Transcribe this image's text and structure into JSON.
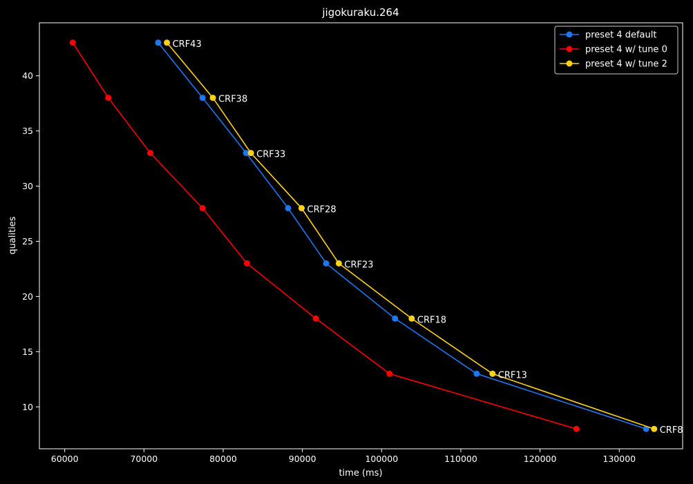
{
  "chart_data": {
    "type": "line",
    "title": "jigokuraku.264",
    "xlabel": "time (ms)",
    "ylabel": "qualities",
    "xlim": [
      56800,
      138000
    ],
    "ylim": [
      6.2,
      44.8
    ],
    "xticks": [
      60000,
      70000,
      80000,
      90000,
      100000,
      110000,
      120000,
      130000
    ],
    "yticks": [
      10,
      15,
      20,
      25,
      30,
      35,
      40
    ],
    "grid": false,
    "legend_position": "top-right",
    "series": [
      {
        "name": "preset 4 default",
        "color": "#1f77f0",
        "x": [
          71800,
          77400,
          82900,
          88200,
          93000,
          101700,
          112000,
          133400
        ],
        "y": [
          43,
          38,
          33,
          28,
          23,
          18,
          13,
          8
        ]
      },
      {
        "name": "preset 4 w/ tune 0",
        "color": "#ff0000",
        "x": [
          61000,
          65500,
          70800,
          77400,
          83000,
          91700,
          101000,
          124600
        ],
        "y": [
          43,
          38,
          33,
          28,
          23,
          18,
          13,
          8
        ]
      },
      {
        "name": "preset 4 w/ tune 2",
        "color": "#ffd21a",
        "x": [
          72900,
          78700,
          83500,
          89900,
          94600,
          103800,
          114000,
          134400
        ],
        "y": [
          43,
          38,
          33,
          28,
          23,
          18,
          13,
          8
        ]
      }
    ],
    "annotations": [
      {
        "text": "CRF43",
        "x": 72900,
        "y": 43
      },
      {
        "text": "CRF38",
        "x": 78700,
        "y": 38
      },
      {
        "text": "CRF33",
        "x": 83500,
        "y": 33
      },
      {
        "text": "CRF28",
        "x": 89900,
        "y": 28
      },
      {
        "text": "CRF23",
        "x": 94600,
        "y": 23
      },
      {
        "text": "CRF18",
        "x": 103800,
        "y": 18
      },
      {
        "text": "CRF13",
        "x": 114000,
        "y": 13
      },
      {
        "text": "CRF8",
        "x": 134400,
        "y": 8
      }
    ]
  }
}
